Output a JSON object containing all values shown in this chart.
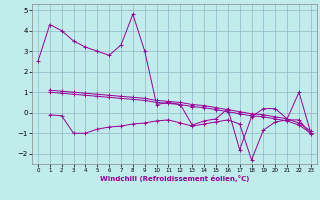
{
  "xlabel": "Windchill (Refroidissement éolien,°C)",
  "xlim": [
    -0.5,
    23.5
  ],
  "ylim": [
    -2.5,
    5.3
  ],
  "yticks": [
    -2,
    -1,
    0,
    1,
    2,
    3,
    4,
    5
  ],
  "xticks": [
    0,
    1,
    2,
    3,
    4,
    5,
    6,
    7,
    8,
    9,
    10,
    11,
    12,
    13,
    14,
    15,
    16,
    17,
    18,
    19,
    20,
    21,
    22,
    23
  ],
  "bg_color": "#c0ecec",
  "line_color": "#990099",
  "grid_color": "#90b8c8",
  "series": [
    {
      "x": [
        0,
        1,
        2,
        3,
        4,
        5,
        6,
        7,
        8,
        9,
        10,
        11,
        12,
        13,
        14,
        15,
        16,
        17,
        18,
        19,
        20,
        21,
        22,
        23
      ],
      "y": [
        2.5,
        4.3,
        4.0,
        3.5,
        3.2,
        3.0,
        2.8,
        3.3,
        4.8,
        3.0,
        0.4,
        0.5,
        0.4,
        -0.6,
        -0.4,
        -0.3,
        0.2,
        -1.8,
        -0.2,
        0.2,
        0.2,
        -0.3,
        1.0,
        -1.0
      ]
    },
    {
      "x": [
        1,
        2,
        3,
        4,
        5,
        6,
        7,
        8,
        9,
        10,
        11,
        12,
        13,
        14,
        15,
        16,
        17,
        18,
        19,
        20,
        21,
        22,
        23
      ],
      "y": [
        1.1,
        1.05,
        1.0,
        0.95,
        0.9,
        0.85,
        0.8,
        0.75,
        0.7,
        0.6,
        0.55,
        0.5,
        0.4,
        0.35,
        0.25,
        0.15,
        0.05,
        -0.05,
        -0.1,
        -0.2,
        -0.3,
        -0.5,
        -0.9
      ]
    },
    {
      "x": [
        1,
        2,
        3,
        4,
        5,
        6,
        7,
        8,
        9,
        10,
        11,
        12,
        13,
        14,
        15,
        16,
        17,
        18,
        19,
        20,
        21,
        22,
        23
      ],
      "y": [
        1.0,
        0.95,
        0.9,
        0.85,
        0.8,
        0.75,
        0.7,
        0.65,
        0.6,
        0.5,
        0.45,
        0.4,
        0.3,
        0.25,
        0.15,
        0.05,
        -0.05,
        -0.15,
        -0.2,
        -0.3,
        -0.4,
        -0.6,
        -1.0
      ]
    },
    {
      "x": [
        1,
        2,
        3,
        4,
        5,
        6,
        7,
        8,
        9,
        10,
        11,
        12,
        13,
        14,
        15,
        16,
        17,
        18,
        19,
        20,
        21,
        22,
        23
      ],
      "y": [
        -0.1,
        -0.15,
        -1.0,
        -1.0,
        -0.8,
        -0.7,
        -0.65,
        -0.55,
        -0.5,
        -0.4,
        -0.35,
        -0.5,
        -0.65,
        -0.55,
        -0.45,
        -0.35,
        -0.55,
        -2.3,
        -0.85,
        -0.45,
        -0.35,
        -0.35,
        -1.05
      ]
    }
  ]
}
